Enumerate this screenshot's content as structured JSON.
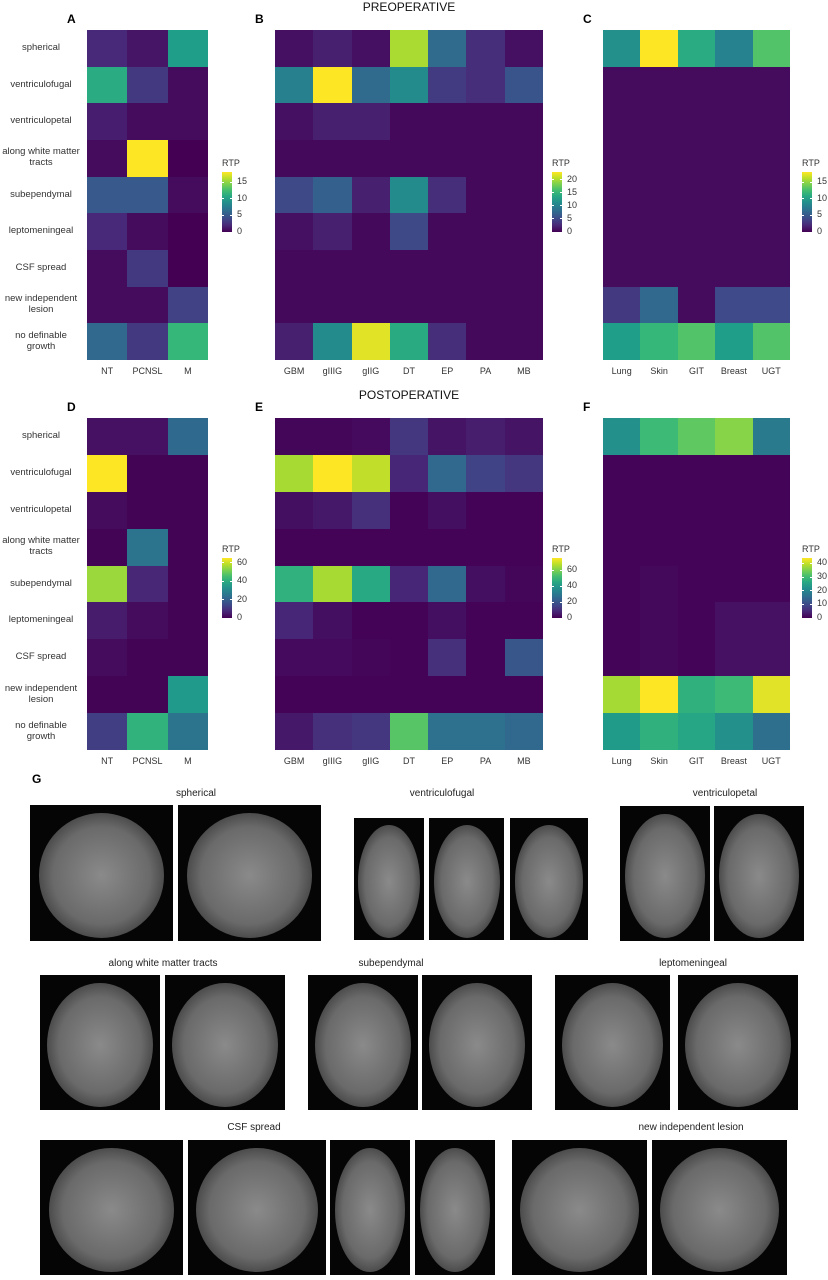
{
  "chart_data": [
    {
      "type": "heatmap",
      "label": "A",
      "colormap": "viridis",
      "colorbar_title": "RTP",
      "clim": [
        0,
        18
      ],
      "cticks": [
        0,
        5,
        10,
        15
      ],
      "y_categories": [
        "spherical",
        "ventriculofugal",
        "ventriculopetal",
        "along white matter tracts",
        "subependymal",
        "leptomeningeal",
        "CSF spread",
        "new independent lesion",
        "no definable growth"
      ],
      "x_categories": [
        "NT",
        "PCNSL",
        "M"
      ],
      "values": [
        [
          2,
          1,
          10
        ],
        [
          11,
          3,
          0.5
        ],
        [
          1.5,
          0.5,
          0.5
        ],
        [
          0.5,
          18,
          0
        ],
        [
          5,
          5,
          0.5
        ],
        [
          2,
          0.5,
          0
        ],
        [
          0.5,
          3,
          0
        ],
        [
          0.5,
          0.5,
          3.5
        ],
        [
          6,
          3,
          12
        ]
      ]
    },
    {
      "type": "heatmap",
      "label": "B",
      "title": "PREOPERATIVE",
      "colormap": "viridis",
      "colorbar_title": "RTP",
      "clim": [
        0,
        23
      ],
      "cticks": [
        0,
        5,
        10,
        15,
        20
      ],
      "x_categories": [
        "GBM",
        "gIIIG",
        "gIIG",
        "DT",
        "EP",
        "PA",
        "MB"
      ],
      "values": [
        [
          1,
          2,
          1,
          20,
          8,
          3,
          1
        ],
        [
          10,
          23,
          8,
          11,
          4,
          3,
          6
        ],
        [
          1,
          2,
          2,
          0.5,
          0.5,
          0.5,
          0.5
        ],
        [
          0.5,
          0.5,
          0.5,
          0.5,
          0.5,
          0.5,
          0.5
        ],
        [
          5,
          7,
          2,
          11,
          3,
          0.5,
          0.5
        ],
        [
          1,
          2,
          0.5,
          5,
          0.5,
          0.5,
          0.5
        ],
        [
          0.5,
          0.5,
          0.5,
          0.5,
          0.5,
          0.5,
          0.5
        ],
        [
          0.5,
          0.5,
          0.5,
          0.5,
          0.5,
          0.5,
          0.5
        ],
        [
          2,
          11,
          22,
          14,
          3,
          0.5,
          0.5
        ]
      ]
    },
    {
      "type": "heatmap",
      "label": "C",
      "colormap": "viridis",
      "colorbar_title": "RTP",
      "clim": [
        0,
        18
      ],
      "cticks": [
        0,
        5,
        10,
        15
      ],
      "x_categories": [
        "Lung",
        "Skin",
        "GIT",
        "Breast",
        "UGT"
      ],
      "values": [
        [
          9,
          18,
          11,
          8,
          13
        ],
        [
          0.5,
          0.5,
          0.5,
          0.5,
          0.5
        ],
        [
          0.5,
          0.5,
          0.5,
          0.5,
          0.5
        ],
        [
          0.5,
          0.5,
          0.5,
          0.5,
          0.5
        ],
        [
          0.5,
          0.5,
          0.5,
          0.5,
          0.5
        ],
        [
          0.5,
          0.5,
          0.5,
          0.5,
          0.5
        ],
        [
          0.5,
          0.5,
          0.5,
          0.5,
          0.5
        ],
        [
          3,
          6,
          0.5,
          4,
          4
        ],
        [
          10,
          12,
          13,
          10,
          13
        ]
      ]
    },
    {
      "type": "heatmap",
      "label": "D",
      "colormap": "viridis",
      "colorbar_title": "RTP",
      "clim": [
        0,
        65
      ],
      "cticks": [
        0,
        20,
        40,
        60
      ],
      "y_categories": [
        "spherical",
        "ventriculofugal",
        "ventriculopetal",
        "along white matter tracts",
        "subependymal",
        "leptomeningeal",
        "CSF spread",
        "new independent lesion",
        "no definable growth"
      ],
      "x_categories": [
        "NT",
        "PCNSL",
        "M"
      ],
      "values": [
        [
          3,
          3,
          22
        ],
        [
          65,
          0.5,
          0.5
        ],
        [
          2,
          0.5,
          0.5
        ],
        [
          0.5,
          25,
          0.5
        ],
        [
          55,
          7,
          0.5
        ],
        [
          5,
          2,
          0.5
        ],
        [
          2,
          0.5,
          0.5
        ],
        [
          0.5,
          0.5,
          35
        ],
        [
          12,
          42,
          25
        ]
      ]
    },
    {
      "type": "heatmap",
      "label": "E",
      "title": "POSTOPERATIVE",
      "colormap": "viridis",
      "colorbar_title": "RTP",
      "clim": [
        0,
        75
      ],
      "cticks": [
        0,
        20,
        40,
        60
      ],
      "x_categories": [
        "GBM",
        "gIIIG",
        "gIIG",
        "DT",
        "EP",
        "PA",
        "MB"
      ],
      "values": [
        [
          1,
          1,
          2,
          12,
          4,
          6,
          4
        ],
        [
          65,
          75,
          68,
          8,
          25,
          15,
          12
        ],
        [
          3,
          5,
          10,
          0.5,
          3,
          0.5,
          0.5
        ],
        [
          0.5,
          0.5,
          0.5,
          0.5,
          0.5,
          0.5,
          0.5
        ],
        [
          48,
          65,
          45,
          8,
          25,
          3,
          1
        ],
        [
          8,
          3,
          0.5,
          0.5,
          3,
          0.5,
          0.5
        ],
        [
          2,
          2,
          1,
          0.5,
          10,
          0.5,
          20
        ],
        [
          0.5,
          0.5,
          0.5,
          0.5,
          0.5,
          0.5,
          0.5
        ],
        [
          5,
          10,
          12,
          55,
          28,
          28,
          25
        ]
      ]
    },
    {
      "type": "heatmap",
      "label": "F",
      "colormap": "viridis",
      "colorbar_title": "RTP",
      "clim": [
        0,
        44
      ],
      "cticks": [
        0,
        10,
        20,
        30,
        40
      ],
      "x_categories": [
        "Lung",
        "Skin",
        "GIT",
        "Breast",
        "UGT"
      ],
      "values": [
        [
          22,
          30,
          33,
          36,
          18
        ],
        [
          0.5,
          0.5,
          0.5,
          0.5,
          0.5
        ],
        [
          0.5,
          0.5,
          0.5,
          0.5,
          0.5
        ],
        [
          0.5,
          0.5,
          0.5,
          0.5,
          0.5
        ],
        [
          0.5,
          1,
          0.5,
          0.5,
          0.5
        ],
        [
          0.5,
          1,
          0.5,
          2,
          2
        ],
        [
          0.5,
          1,
          0.5,
          2,
          2
        ],
        [
          38,
          44,
          28,
          30,
          42
        ],
        [
          24,
          28,
          26,
          22,
          16
        ]
      ]
    }
  ],
  "panel_g": {
    "label": "G",
    "captions": [
      "spherical",
      "ventriculofugal",
      "ventriculopetal",
      "along white matter tracts",
      "subependymal",
      "leptomeningeal",
      "CSF spread",
      "new independent lesion"
    ]
  }
}
